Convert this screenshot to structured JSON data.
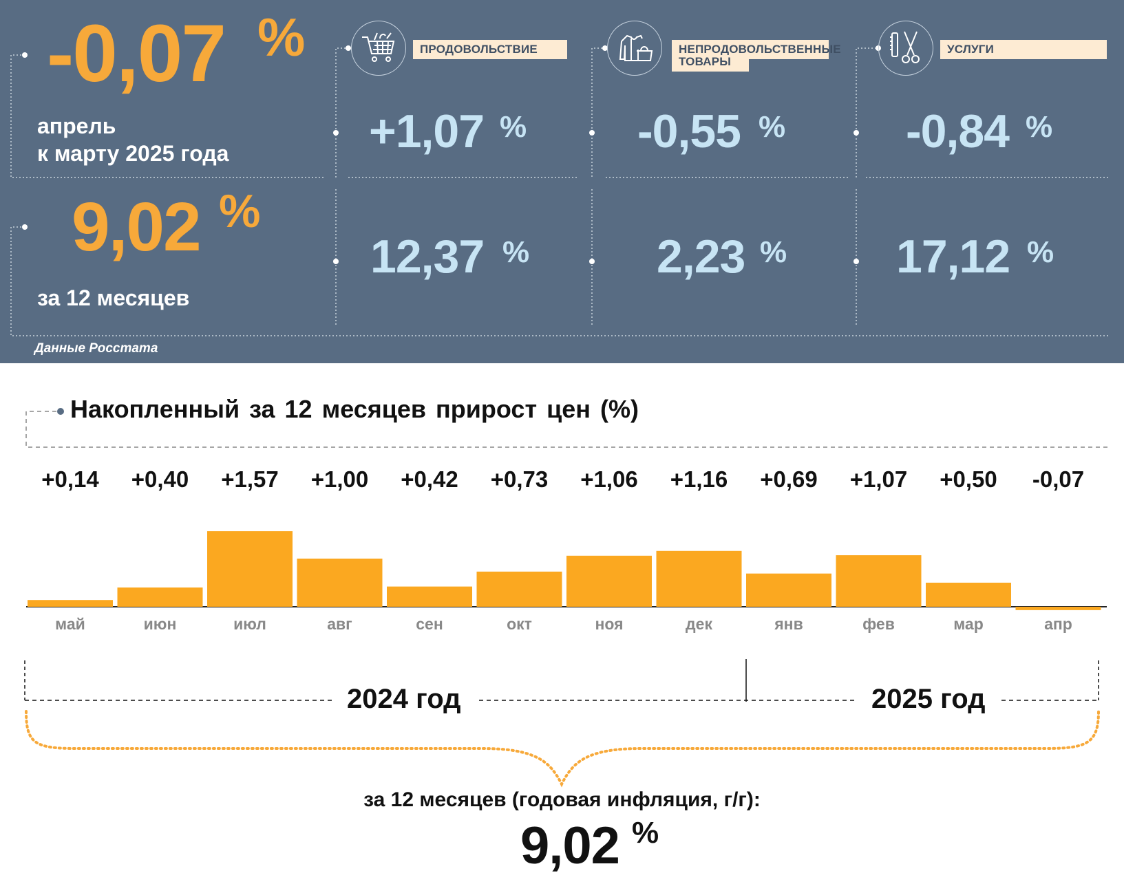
{
  "colors": {
    "panel_bg": "#586c83",
    "accent_orange": "#f7a93a",
    "value_blue": "#c7e4f4",
    "label_bg": "#fdebd3",
    "bar_fill": "#fba820"
  },
  "monthly": {
    "value": "-0,07",
    "unit": "%",
    "caption_line1": "апрель",
    "caption_line2": "к марту 2025 года"
  },
  "yearly": {
    "value": "9,02",
    "unit": "%",
    "caption": "за 12 месяцев"
  },
  "categories": [
    {
      "label": "ПРОДОВОЛЬСТВИЕ",
      "icon": "shopping-cart-icon",
      "monthly": "+1,07",
      "yearly": "12,37",
      "unit": "%"
    },
    {
      "label_line1": "НЕПРОДОВОЛЬСТВЕННЫЕ",
      "label_line2": "ТОВАРЫ",
      "icon": "clothing-bag-icon",
      "monthly": "-0,55",
      "yearly": "2,23",
      "unit": "%"
    },
    {
      "label": "УСЛУГИ",
      "icon": "scissors-comb-icon",
      "monthly": "-0,84",
      "yearly": "17,12",
      "unit": "%"
    }
  ],
  "source": "Данные Росстата",
  "chart_data": {
    "type": "bar",
    "title": "Накопленный за 12 месяцев прирост цен (%)",
    "categories": [
      "май",
      "июн",
      "июл",
      "авг",
      "сен",
      "окт",
      "ноя",
      "дек",
      "янв",
      "фев",
      "мар",
      "апр"
    ],
    "values": [
      0.14,
      0.4,
      1.57,
      1.0,
      0.42,
      0.73,
      1.06,
      1.16,
      0.69,
      1.07,
      0.5,
      -0.07
    ],
    "value_labels": [
      "+0,14",
      "+0,40",
      "+1,57",
      "+1,00",
      "+0,42",
      "+0,73",
      "+1,06",
      "+1,16",
      "+0,69",
      "+1,07",
      "+0,50",
      "-0,07"
    ],
    "year_groups": [
      {
        "label": "2024 год",
        "months": [
          "май",
          "июн",
          "июл",
          "авг",
          "сен",
          "окт",
          "ноя",
          "дек"
        ]
      },
      {
        "label": "2025 год",
        "months": [
          "янв",
          "фев",
          "мар",
          "апр"
        ]
      }
    ],
    "total_caption": "за 12 месяцев (годовая инфляция, г/г):",
    "total_value": "9,02",
    "total_unit": "%",
    "grid": false,
    "xlabel": "",
    "ylabel": ""
  }
}
